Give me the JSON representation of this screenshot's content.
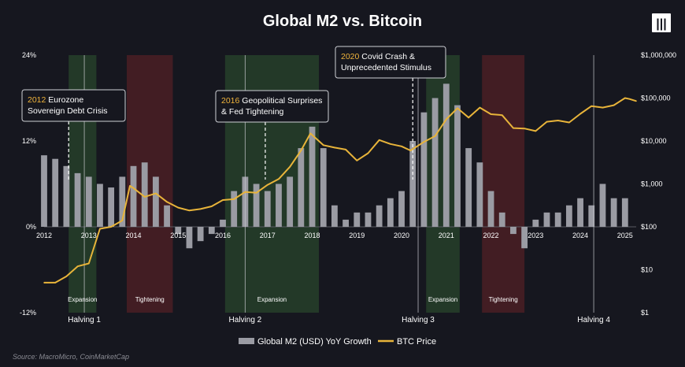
{
  "logo_text": "|||",
  "colors": {
    "background": "#16171f",
    "m2_bars": "#9a9ba3",
    "btc_line": "#e8b43a",
    "expansion_band": "#26402a",
    "tightening_band": "#4a1f24",
    "text": "#ffffff",
    "annotation_year": "#f0b43c"
  },
  "chart_data": {
    "type": "bar+line",
    "title": "Global M2 vs. Bitcoin",
    "source": "Source: MacroMicro, CoinMarketCap",
    "x_ticks": [
      "2012",
      "2013",
      "2014",
      "2015",
      "2016",
      "2017",
      "2018",
      "2019",
      "2020",
      "2021",
      "2022",
      "2023",
      "2024",
      "2025"
    ],
    "x_range": [
      2012.0,
      2025.25
    ],
    "left_axis": {
      "ticks": [
        "24%",
        "12%",
        "0%",
        "-12%"
      ],
      "values": [
        24,
        12,
        0,
        -12
      ],
      "range": [
        -12,
        24
      ]
    },
    "right_axis": {
      "ticks": [
        "$1,000,000",
        "$100,000",
        "$10,000",
        "$1,000",
        "$100",
        "$10",
        "$1"
      ],
      "scale": "log",
      "range": [
        1,
        1000000
      ]
    },
    "legend": [
      "Global M2 (USD) YoY Growth",
      "BTC Price"
    ],
    "bands": [
      {
        "label": "Expansion",
        "type": "expansion",
        "start": 2012.55,
        "end": 2013.17
      },
      {
        "label": "Tightening",
        "type": "tightening",
        "start": 2013.85,
        "end": 2014.88
      },
      {
        "label": "Expansion",
        "type": "expansion",
        "start": 2016.05,
        "end": 2018.15
      },
      {
        "label": "Expansion",
        "type": "expansion",
        "start": 2020.55,
        "end": 2021.3
      },
      {
        "label": "Tightening",
        "type": "tightening",
        "start": 2021.8,
        "end": 2022.75
      }
    ],
    "halvings": [
      {
        "label": "Halving 1",
        "date": 2012.9
      },
      {
        "label": "Halving 2",
        "date": 2016.5
      },
      {
        "label": "Halving 3",
        "date": 2020.37
      },
      {
        "label": "Halving 4",
        "date": 2024.3
      }
    ],
    "annotations": [
      {
        "year": "2012",
        "text": [
          "Eurozone",
          "Sovereign Debt Crisis"
        ],
        "date": 2012.55
      },
      {
        "year": "2016",
        "text": [
          "Geopolitical Surprises",
          "& Fed Tightening"
        ],
        "date": 2016.95
      },
      {
        "year": "2020",
        "text": [
          "Covid Crash &",
          "Unprecedented Stimulus"
        ],
        "date": 2020.25
      }
    ],
    "series": [
      {
        "name": "Global M2 (USD) YoY Growth",
        "type": "bar",
        "points": [
          [
            2012.0,
            10
          ],
          [
            2012.25,
            9.5
          ],
          [
            2012.5,
            8.5
          ],
          [
            2012.75,
            7.5
          ],
          [
            2013.0,
            7
          ],
          [
            2013.25,
            6
          ],
          [
            2013.5,
            5.5
          ],
          [
            2013.75,
            7
          ],
          [
            2014.0,
            8.5
          ],
          [
            2014.25,
            9
          ],
          [
            2014.5,
            7
          ],
          [
            2014.75,
            3
          ],
          [
            2015.0,
            -1
          ],
          [
            2015.25,
            -3
          ],
          [
            2015.5,
            -2
          ],
          [
            2015.75,
            -1
          ],
          [
            2016.0,
            1
          ],
          [
            2016.25,
            5
          ],
          [
            2016.5,
            7
          ],
          [
            2016.75,
            6
          ],
          [
            2017.0,
            5
          ],
          [
            2017.25,
            6
          ],
          [
            2017.5,
            7
          ],
          [
            2017.75,
            11
          ],
          [
            2018.0,
            14
          ],
          [
            2018.25,
            11
          ],
          [
            2018.5,
            3
          ],
          [
            2018.75,
            1
          ],
          [
            2019.0,
            2
          ],
          [
            2019.25,
            2
          ],
          [
            2019.5,
            3
          ],
          [
            2019.75,
            4
          ],
          [
            2020.0,
            5
          ],
          [
            2020.25,
            12
          ],
          [
            2020.5,
            16
          ],
          [
            2020.75,
            18
          ],
          [
            2021.0,
            20
          ],
          [
            2021.25,
            17
          ],
          [
            2021.5,
            11
          ],
          [
            2021.75,
            9
          ],
          [
            2022.0,
            5
          ],
          [
            2022.25,
            2
          ],
          [
            2022.5,
            -1
          ],
          [
            2022.75,
            -3
          ],
          [
            2023.0,
            1
          ],
          [
            2023.25,
            2
          ],
          [
            2023.5,
            2
          ],
          [
            2023.75,
            3
          ],
          [
            2024.0,
            4
          ],
          [
            2024.25,
            3
          ],
          [
            2024.5,
            6
          ],
          [
            2024.75,
            4
          ],
          [
            2025.0,
            4
          ]
        ]
      },
      {
        "name": "BTC Price",
        "type": "line",
        "points": [
          [
            2012.0,
            5
          ],
          [
            2012.25,
            5
          ],
          [
            2012.5,
            7
          ],
          [
            2012.75,
            12
          ],
          [
            2013.0,
            14
          ],
          [
            2013.25,
            90
          ],
          [
            2013.5,
            100
          ],
          [
            2013.75,
            140
          ],
          [
            2013.92,
            900
          ],
          [
            2014.0,
            800
          ],
          [
            2014.25,
            500
          ],
          [
            2014.5,
            600
          ],
          [
            2014.75,
            380
          ],
          [
            2015.0,
            280
          ],
          [
            2015.25,
            240
          ],
          [
            2015.5,
            260
          ],
          [
            2015.75,
            300
          ],
          [
            2016.0,
            420
          ],
          [
            2016.25,
            440
          ],
          [
            2016.5,
            650
          ],
          [
            2016.75,
            620
          ],
          [
            2017.0,
            950
          ],
          [
            2017.25,
            1300
          ],
          [
            2017.5,
            2500
          ],
          [
            2017.75,
            6000
          ],
          [
            2017.96,
            15000
          ],
          [
            2018.25,
            8000
          ],
          [
            2018.5,
            7000
          ],
          [
            2018.75,
            6300
          ],
          [
            2019.0,
            3500
          ],
          [
            2019.25,
            5200
          ],
          [
            2019.5,
            10500
          ],
          [
            2019.75,
            8500
          ],
          [
            2020.0,
            7500
          ],
          [
            2020.2,
            6000
          ],
          [
            2020.5,
            9500
          ],
          [
            2020.75,
            13000
          ],
          [
            2021.0,
            32000
          ],
          [
            2021.25,
            58000
          ],
          [
            2021.5,
            35000
          ],
          [
            2021.75,
            60000
          ],
          [
            2022.0,
            42000
          ],
          [
            2022.25,
            40000
          ],
          [
            2022.5,
            20000
          ],
          [
            2022.75,
            19500
          ],
          [
            2023.0,
            17000
          ],
          [
            2023.25,
            28000
          ],
          [
            2023.5,
            30000
          ],
          [
            2023.75,
            27000
          ],
          [
            2024.0,
            43000
          ],
          [
            2024.25,
            65000
          ],
          [
            2024.5,
            60000
          ],
          [
            2024.75,
            68000
          ],
          [
            2025.0,
            100000
          ],
          [
            2025.1,
            95000
          ],
          [
            2025.25,
            85000
          ]
        ]
      }
    ]
  }
}
